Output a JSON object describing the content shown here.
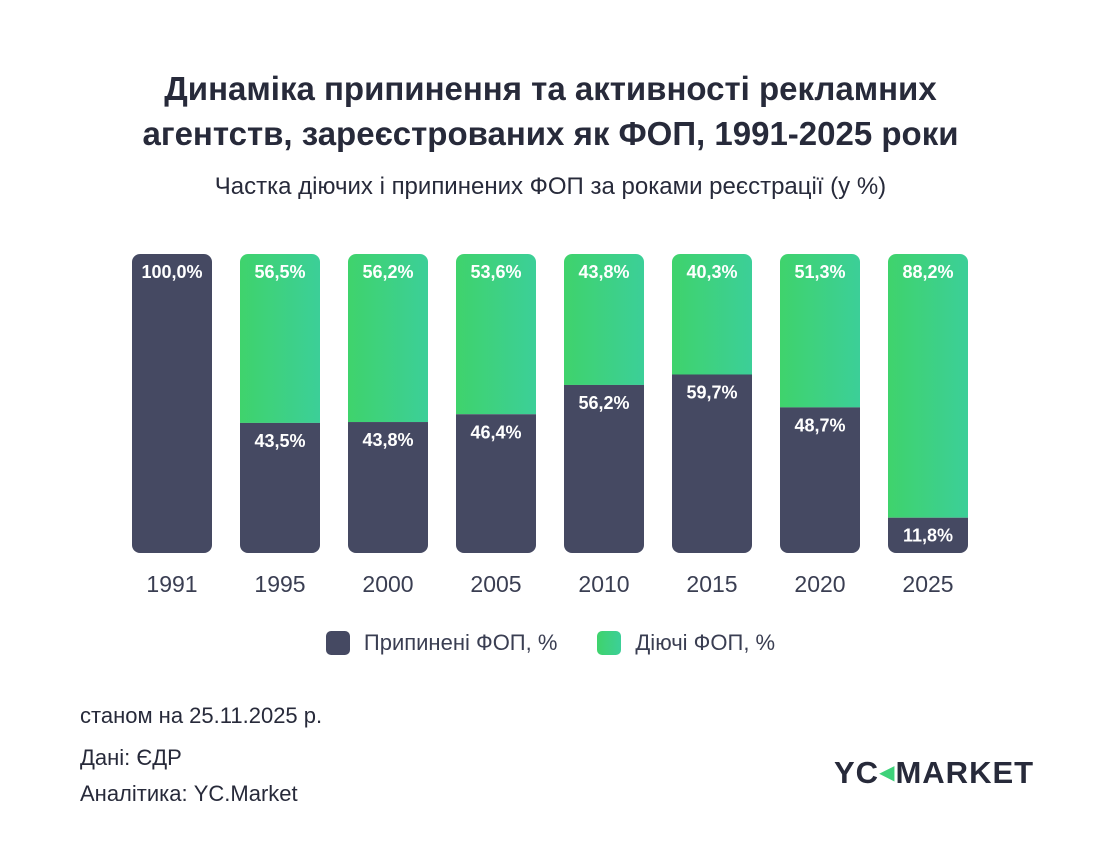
{
  "chart_data": {
    "type": "bar",
    "stacked": true,
    "title": "Динаміка припинення та активності рекламних агентств, зареєстрованих як ФОП, 1991-2025 роки",
    "title_lines": [
      "Динаміка припинення та активності рекламних",
      "агентств, зареєстрованих як ФОП, 1991-2025 роки"
    ],
    "subtitle": "Частка діючих і припинених ФОП за роками реєстрації (у %)",
    "categories": [
      "1991",
      "1995",
      "2000",
      "2005",
      "2010",
      "2015",
      "2020",
      "2025"
    ],
    "series": [
      {
        "name": "Припинені ФОП, %",
        "color": "#454962",
        "values": [
          100.0,
          43.5,
          43.8,
          46.4,
          56.2,
          59.7,
          48.7,
          11.8
        ],
        "labels": [
          "100,0%",
          "43,5%",
          "43,8%",
          "46,4%",
          "56,2%",
          "59,7%",
          "48,7%",
          "11,8%"
        ]
      },
      {
        "name": "Діючі ФОП, %",
        "color": "#3ed27a",
        "values": [
          0,
          56.5,
          56.2,
          53.6,
          43.8,
          40.3,
          51.3,
          88.2
        ],
        "labels": [
          "",
          "56,5%",
          "56,2%",
          "53,6%",
          "43,8%",
          "40,3%",
          "51,3%",
          "88,2%"
        ]
      }
    ],
    "ylim": [
      0,
      100
    ],
    "grid": false,
    "legend": "bottom"
  },
  "footer": {
    "date": "станом на 25.11.2025 р.",
    "source": "Дані: ЄДР",
    "analytics": "Аналітика: YC.Market"
  },
  "logo": {
    "text": "YC MARKET",
    "left": "YC",
    "right": "MARKET"
  }
}
